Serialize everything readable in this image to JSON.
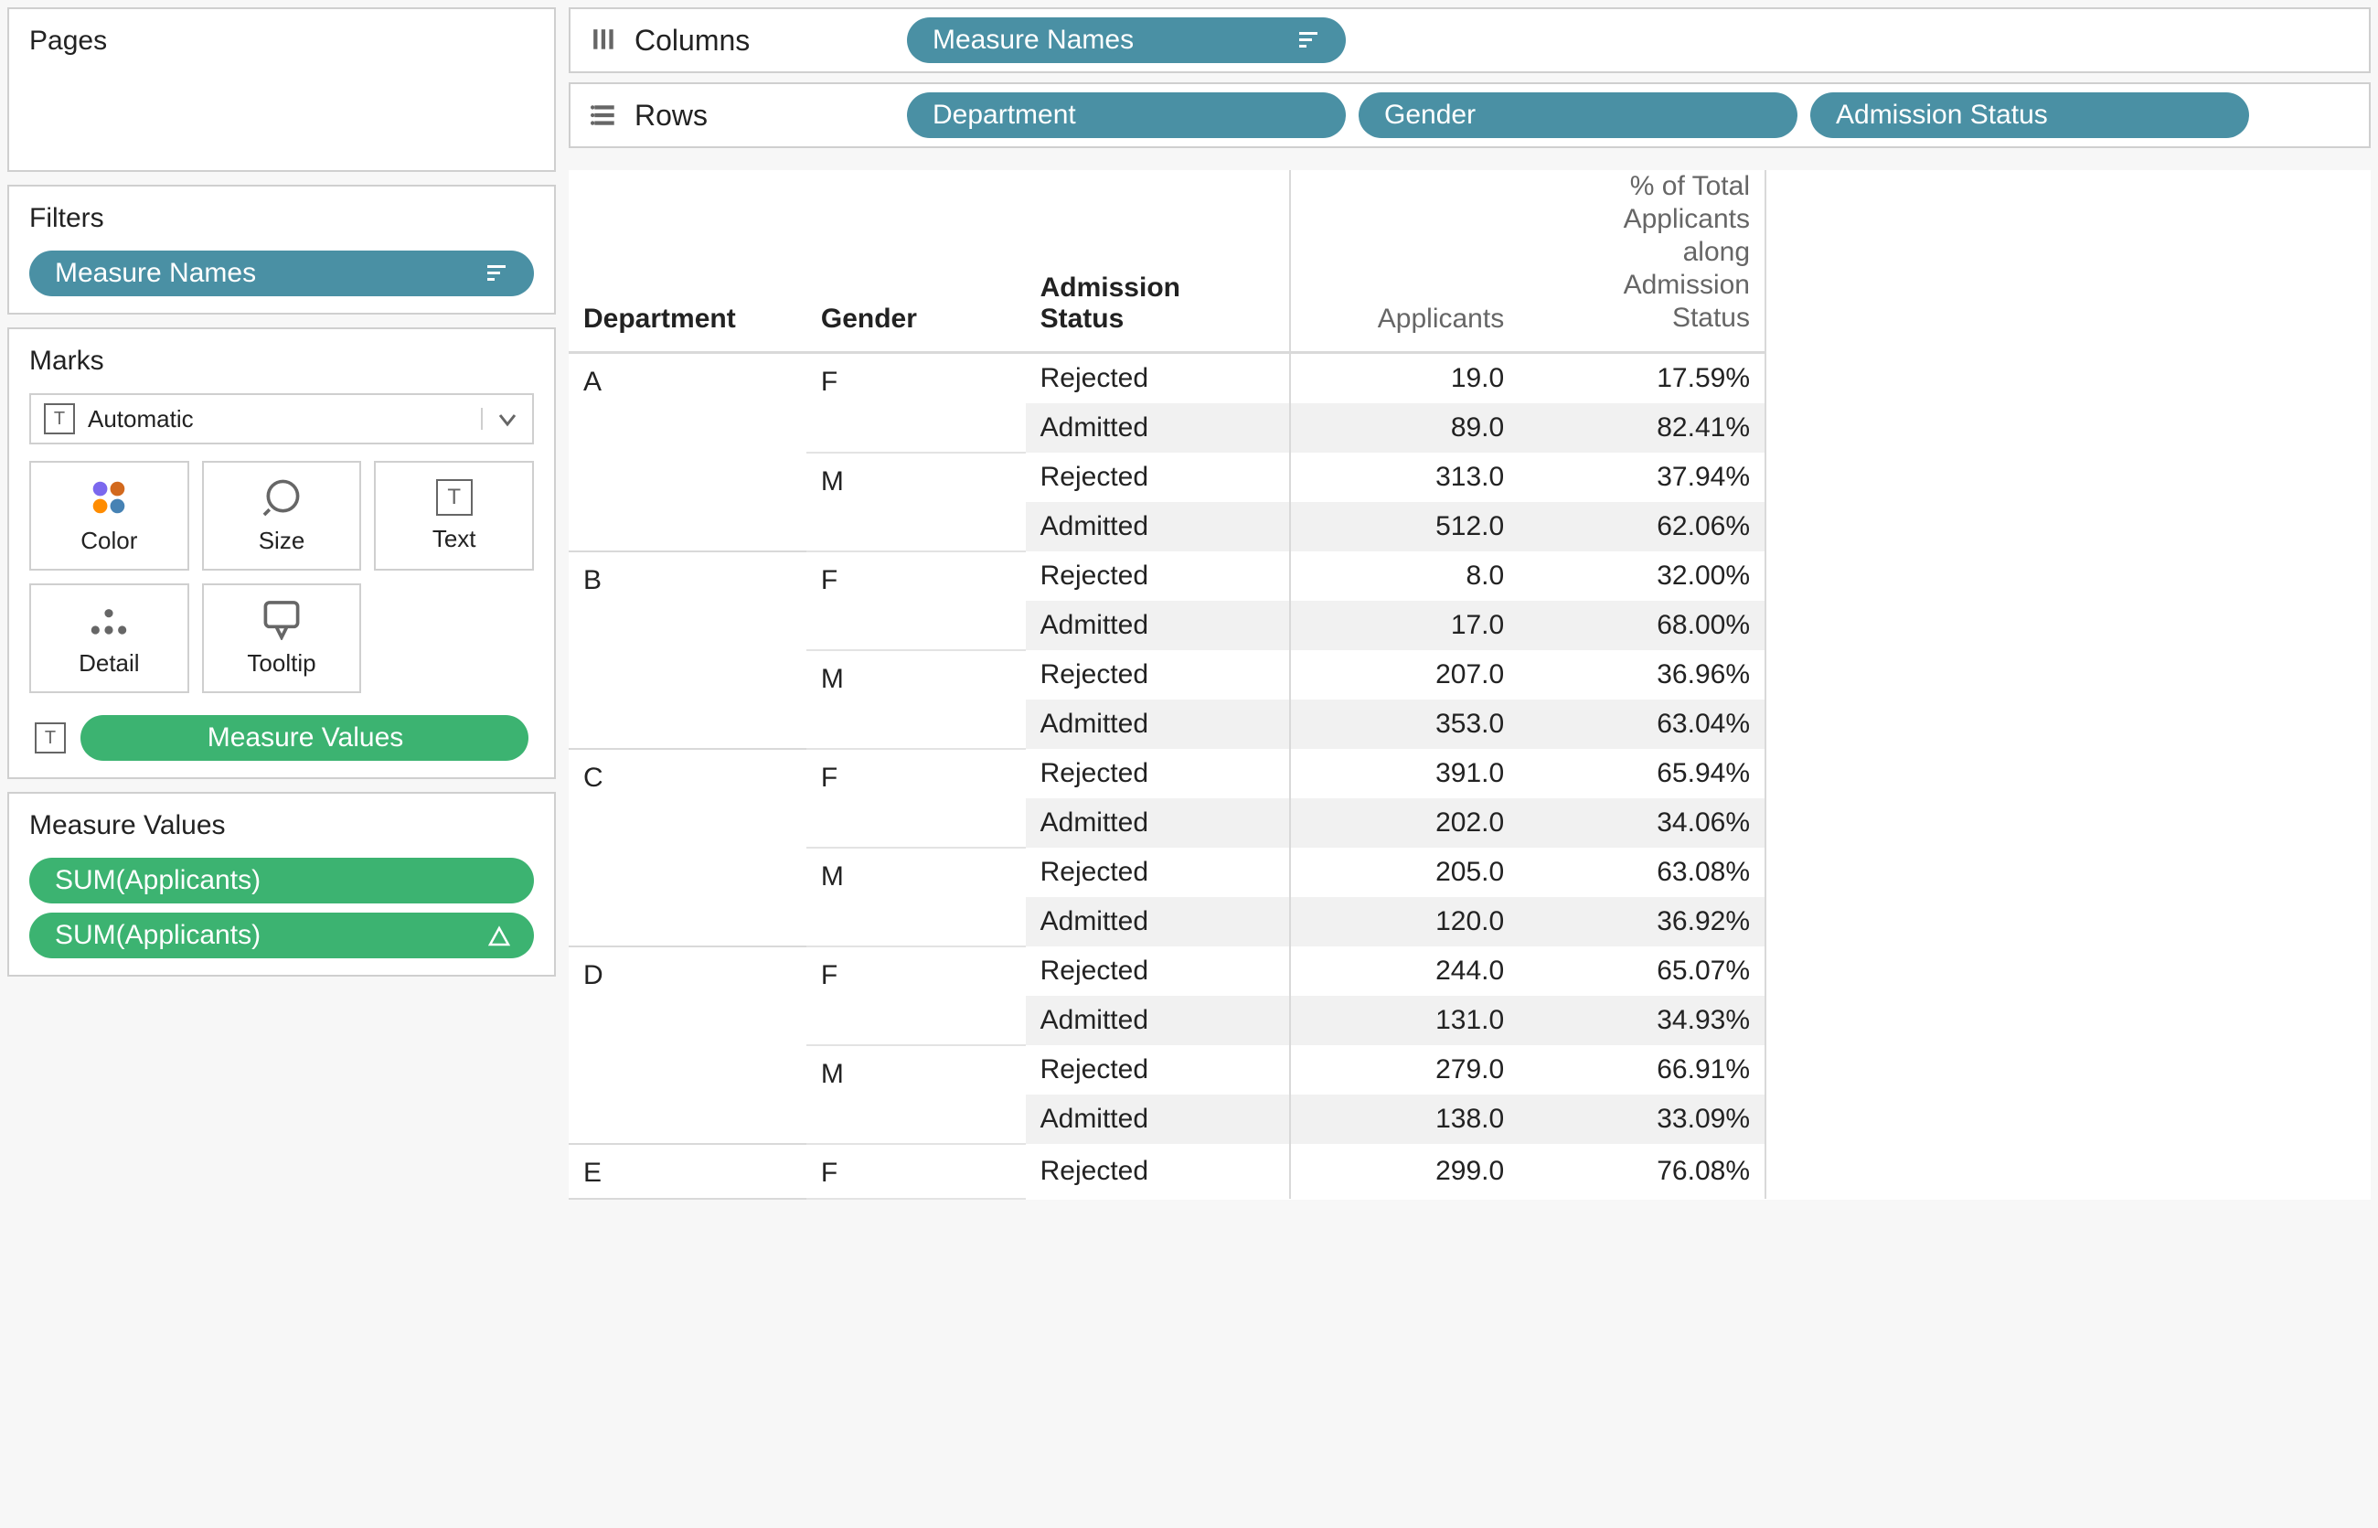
{
  "colors": {
    "pill_blue": "#4a90a4",
    "pill_green": "#3cb371",
    "panel_border": "#cfcfcf",
    "table_alt": "#f1f1f1",
    "table_border": "#d9d9d9"
  },
  "sidebar": {
    "pages": {
      "title": "Pages"
    },
    "filters": {
      "title": "Filters",
      "items": [
        {
          "label": "Measure Names",
          "color": "blue",
          "icon": "sort-icon"
        }
      ]
    },
    "marks": {
      "title": "Marks",
      "type_selector": {
        "label": "Automatic",
        "icon": "text-type-icon"
      },
      "buttons": [
        {
          "label": "Color",
          "icon": "color-dots-icon"
        },
        {
          "label": "Size",
          "icon": "size-icon"
        },
        {
          "label": "Text",
          "icon": "text-type-icon"
        },
        {
          "label": "Detail",
          "icon": "detail-icon"
        },
        {
          "label": "Tooltip",
          "icon": "tooltip-icon"
        }
      ],
      "footer_pill": {
        "label": "Measure Values",
        "color": "green"
      }
    },
    "measure_values": {
      "title": "Measure Values",
      "items": [
        {
          "label": "SUM(Applicants)",
          "color": "green",
          "icon": null
        },
        {
          "label": "SUM(Applicants)",
          "color": "green",
          "icon": "delta-icon"
        }
      ]
    }
  },
  "shelves": {
    "columns": {
      "label": "Columns",
      "pills": [
        {
          "label": "Measure Names",
          "color": "blue",
          "icon": "sort-icon"
        }
      ]
    },
    "rows": {
      "label": "Rows",
      "pills": [
        {
          "label": "Department",
          "color": "blue"
        },
        {
          "label": "Gender",
          "color": "blue"
        },
        {
          "label": "Admission Status",
          "color": "blue"
        }
      ]
    }
  },
  "crosstab": {
    "type": "table",
    "headers": {
      "department": "Department",
      "gender": "Gender",
      "status": "Admission\nStatus",
      "applicants": "Applicants",
      "pct": "% of Total\nApplicants\nalong\nAdmission\nStatus"
    },
    "row_alt_bg": "#f1f1f1",
    "data": [
      {
        "dept": "A",
        "genders": [
          {
            "gender": "F",
            "rows": [
              {
                "status": "Rejected",
                "applicants": "19.0",
                "pct": "17.59%"
              },
              {
                "status": "Admitted",
                "applicants": "89.0",
                "pct": "82.41%"
              }
            ]
          },
          {
            "gender": "M",
            "rows": [
              {
                "status": "Rejected",
                "applicants": "313.0",
                "pct": "37.94%"
              },
              {
                "status": "Admitted",
                "applicants": "512.0",
                "pct": "62.06%"
              }
            ]
          }
        ]
      },
      {
        "dept": "B",
        "genders": [
          {
            "gender": "F",
            "rows": [
              {
                "status": "Rejected",
                "applicants": "8.0",
                "pct": "32.00%"
              },
              {
                "status": "Admitted",
                "applicants": "17.0",
                "pct": "68.00%"
              }
            ]
          },
          {
            "gender": "M",
            "rows": [
              {
                "status": "Rejected",
                "applicants": "207.0",
                "pct": "36.96%"
              },
              {
                "status": "Admitted",
                "applicants": "353.0",
                "pct": "63.04%"
              }
            ]
          }
        ]
      },
      {
        "dept": "C",
        "genders": [
          {
            "gender": "F",
            "rows": [
              {
                "status": "Rejected",
                "applicants": "391.0",
                "pct": "65.94%"
              },
              {
                "status": "Admitted",
                "applicants": "202.0",
                "pct": "34.06%"
              }
            ]
          },
          {
            "gender": "M",
            "rows": [
              {
                "status": "Rejected",
                "applicants": "205.0",
                "pct": "63.08%"
              },
              {
                "status": "Admitted",
                "applicants": "120.0",
                "pct": "36.92%"
              }
            ]
          }
        ]
      },
      {
        "dept": "D",
        "genders": [
          {
            "gender": "F",
            "rows": [
              {
                "status": "Rejected",
                "applicants": "244.0",
                "pct": "65.07%"
              },
              {
                "status": "Admitted",
                "applicants": "131.0",
                "pct": "34.93%"
              }
            ]
          },
          {
            "gender": "M",
            "rows": [
              {
                "status": "Rejected",
                "applicants": "279.0",
                "pct": "66.91%"
              },
              {
                "status": "Admitted",
                "applicants": "138.0",
                "pct": "33.09%"
              }
            ]
          }
        ]
      },
      {
        "dept": "E",
        "genders": [
          {
            "gender": "F",
            "rows": [
              {
                "status": "Rejected",
                "applicants": "299.0",
                "pct": "76.08%"
              }
            ]
          }
        ]
      }
    ]
  }
}
